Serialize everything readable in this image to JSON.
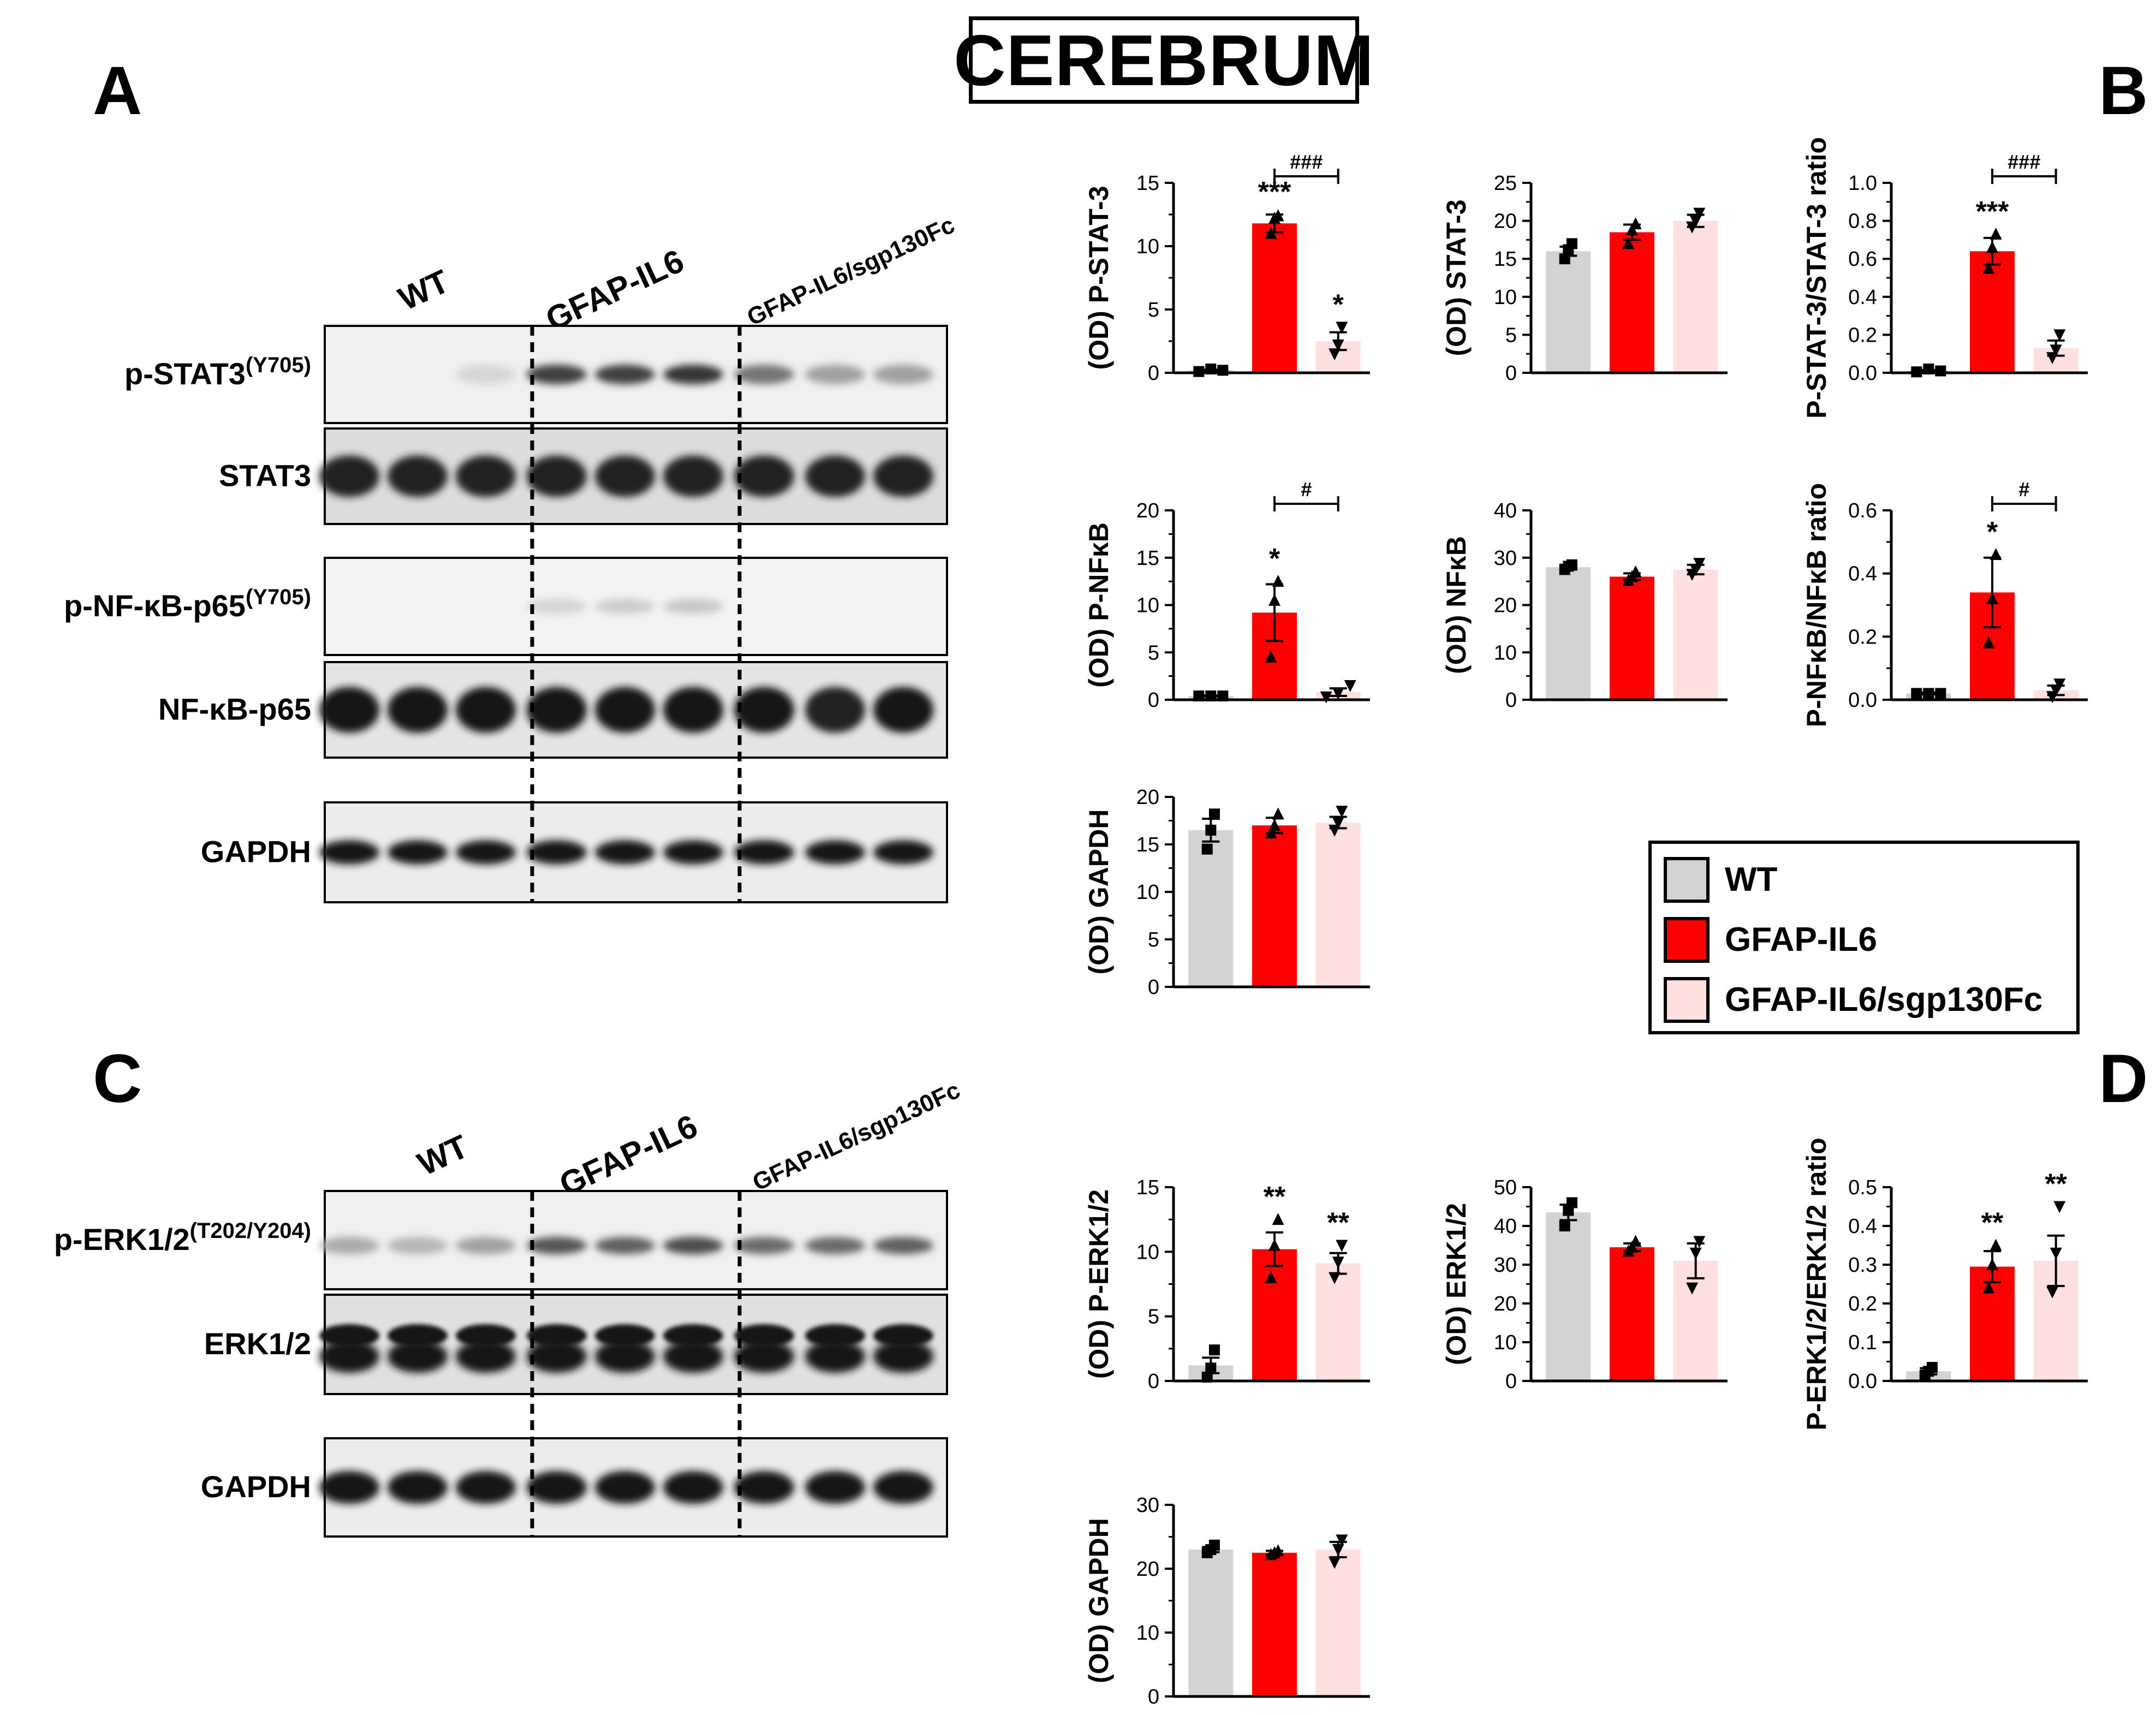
{
  "figure_title": "CEREBRUM",
  "panel_letters": {
    "A": "A",
    "B": "B",
    "C": "C",
    "D": "D"
  },
  "groups": [
    "WT",
    "GFAP-IL6",
    "GFAP-IL6/sgp130Fc"
  ],
  "colors": {
    "WT": "#d3d3d3",
    "GFAP-IL6": "#ff0000",
    "GFAP-IL6/sgp130Fc": "#ffe0e0"
  },
  "legend": [
    {
      "label": "WT",
      "color": "#d3d3d3"
    },
    {
      "label": "GFAP-IL6",
      "color": "#ff0000"
    },
    {
      "label": "GFAP-IL6/sgp130Fc",
      "color": "#ffe0e0"
    }
  ],
  "blots": {
    "A": {
      "group_headers": [
        "WT",
        "GFAP-IL6",
        "GFAP-IL6/sgp130Fc"
      ],
      "lanes": [
        {
          "label": "p-STAT3",
          "superscript": "(Y705)",
          "bands": [
            0.02,
            0.02,
            0.05,
            0.75,
            0.75,
            0.8,
            0.5,
            0.3,
            0.3
          ]
        },
        {
          "label": "STAT3",
          "superscript": "",
          "bands": [
            0.9,
            0.9,
            0.9,
            0.9,
            0.9,
            0.9,
            0.9,
            0.9,
            0.9
          ]
        },
        {
          "label": "p-NF-κB-p65",
          "superscript": "(Y705)",
          "bands": [
            0.02,
            0.02,
            0.02,
            0.06,
            0.1,
            0.12,
            0.02,
            0.02,
            0.02
          ]
        },
        {
          "label": "NF-κB-p65",
          "superscript": "",
          "bands": [
            0.95,
            0.95,
            0.95,
            0.95,
            0.95,
            0.95,
            0.95,
            0.9,
            0.95
          ]
        },
        {
          "label": "GAPDH",
          "superscript": "",
          "bands": [
            0.95,
            0.95,
            0.95,
            0.95,
            0.95,
            0.95,
            0.95,
            0.95,
            0.95
          ]
        }
      ]
    },
    "C": {
      "group_headers": [
        "WT",
        "GFAP-IL6",
        "GFAP-IL6/sgp130Fc"
      ],
      "lanes": [
        {
          "label": "p-ERK1/2",
          "superscript": "(T202/Y204)",
          "bands": [
            0.25,
            0.2,
            0.3,
            0.65,
            0.6,
            0.7,
            0.55,
            0.55,
            0.6
          ]
        },
        {
          "label": "ERK1/2",
          "superscript": "",
          "bands": [
            0.95,
            0.95,
            0.95,
            0.95,
            0.95,
            0.95,
            0.95,
            0.95,
            0.95
          ]
        },
        {
          "label": "GAPDH",
          "superscript": "",
          "bands": [
            0.95,
            0.95,
            0.95,
            0.95,
            0.95,
            0.95,
            0.95,
            0.95,
            0.95
          ]
        }
      ]
    }
  },
  "chart_data": [
    {
      "id": "pstat3",
      "type": "bar",
      "ylabel": "(OD) P-STAT-3",
      "ylim": [
        0,
        15
      ],
      "ticks": [
        0,
        5,
        10,
        15
      ],
      "tick_labels": [
        "0",
        "5",
        "10",
        "15"
      ],
      "categories": [
        "WT",
        "GFAP-IL6",
        "GFAP-IL6/sgp130Fc"
      ],
      "values": [
        0.2,
        11.8,
        2.5
      ],
      "errors": [
        0.05,
        0.7,
        0.7
      ],
      "points": [
        [
          0.1,
          0.3,
          0.2
        ],
        [
          11.0,
          12.2,
          12.4
        ],
        [
          1.5,
          2.2,
          3.6
        ]
      ],
      "marks": [
        "",
        "***",
        "*"
      ],
      "comparison": {
        "from": 1,
        "to": 2,
        "label": "###"
      }
    },
    {
      "id": "stat3",
      "type": "bar",
      "ylabel": "(OD) STAT-3",
      "ylim": [
        0,
        25
      ],
      "ticks": [
        0,
        5,
        10,
        15,
        20,
        25
      ],
      "tick_labels": [
        "0",
        "5",
        "10",
        "15",
        "20",
        "25"
      ],
      "categories": [
        "WT",
        "GFAP-IL6",
        "GFAP-IL6/sgp130Fc"
      ],
      "values": [
        16.0,
        18.5,
        20.0
      ],
      "errors": [
        0.6,
        1.0,
        0.8
      ],
      "points": [
        [
          15.0,
          16.2,
          17.0
        ],
        [
          17.0,
          18.8,
          19.6
        ],
        [
          19.2,
          20.0,
          21.0
        ]
      ],
      "marks": [
        "",
        "",
        ""
      ],
      "comparison": null
    },
    {
      "id": "pstat3ratio",
      "type": "bar",
      "ylabel": "P-STAT-3/STAT-3 ratio",
      "ylim": [
        0,
        1.0
      ],
      "ticks": [
        0,
        0.2,
        0.4,
        0.6,
        0.8,
        1.0
      ],
      "tick_labels": [
        "0.0",
        "0.2",
        "0.4",
        "0.6",
        "0.8",
        "1.0"
      ],
      "categories": [
        "WT",
        "GFAP-IL6",
        "GFAP-IL6/sgp130Fc"
      ],
      "values": [
        0.01,
        0.64,
        0.13
      ],
      "errors": [
        0.005,
        0.07,
        0.04
      ],
      "points": [
        [
          0.005,
          0.02,
          0.01
        ],
        [
          0.55,
          0.66,
          0.73
        ],
        [
          0.08,
          0.12,
          0.2
        ]
      ],
      "marks": [
        "",
        "***",
        ""
      ],
      "comparison": {
        "from": 1,
        "to": 2,
        "label": "###"
      }
    },
    {
      "id": "pnfkb",
      "type": "bar",
      "ylabel": "(OD) P-NFκB",
      "ylim": [
        0,
        20
      ],
      "ticks": [
        0,
        5,
        10,
        15,
        20
      ],
      "tick_labels": [
        "0",
        "5",
        "10",
        "15",
        "20"
      ],
      "categories": [
        "WT",
        "GFAP-IL6",
        "GFAP-IL6/sgp130Fc"
      ],
      "values": [
        0.4,
        9.2,
        0.8
      ],
      "errors": [
        0.05,
        3.0,
        0.4
      ],
      "points": [
        [
          0.4,
          0.4,
          0.4
        ],
        [
          4.5,
          10.5,
          12.5
        ],
        [
          0.3,
          0.7,
          1.5
        ]
      ],
      "marks": [
        "",
        "*",
        ""
      ],
      "comparison": {
        "from": 1,
        "to": 2,
        "label": "#"
      }
    },
    {
      "id": "nfkb",
      "type": "bar",
      "ylabel": "(OD) NFκB",
      "ylim": [
        0,
        40
      ],
      "ticks": [
        0,
        10,
        20,
        30,
        40
      ],
      "tick_labels": [
        "0",
        "10",
        "20",
        "30",
        "40"
      ],
      "categories": [
        "WT",
        "GFAP-IL6",
        "GFAP-IL6/sgp130Fc"
      ],
      "values": [
        28.0,
        26.0,
        27.5
      ],
      "errors": [
        0.5,
        0.7,
        1.0
      ],
      "points": [
        [
          27.5,
          28.2,
          28.5
        ],
        [
          25.2,
          26.0,
          27.0
        ],
        [
          26.5,
          27.5,
          28.8
        ]
      ],
      "marks": [
        "",
        "",
        ""
      ],
      "comparison": null
    },
    {
      "id": "pnfkbratio",
      "type": "bar",
      "ylabel": "P-NFκB/NFκB ratio",
      "ylim": [
        0,
        0.6
      ],
      "ticks": [
        0,
        0.2,
        0.4,
        0.6
      ],
      "tick_labels": [
        "0.0",
        "0.2",
        "0.4",
        "0.6"
      ],
      "categories": [
        "WT",
        "GFAP-IL6",
        "GFAP-IL6/sgp130Fc"
      ],
      "values": [
        0.02,
        0.34,
        0.03
      ],
      "errors": [
        0.003,
        0.11,
        0.015
      ],
      "points": [
        [
          0.02,
          0.02,
          0.02
        ],
        [
          0.18,
          0.32,
          0.46
        ],
        [
          0.01,
          0.03,
          0.05
        ]
      ],
      "marks": [
        "",
        "*",
        ""
      ],
      "comparison": {
        "from": 1,
        "to": 2,
        "label": "#"
      }
    },
    {
      "id": "gapdh1",
      "type": "bar",
      "ylabel": "(OD) GAPDH",
      "ylim": [
        0,
        20
      ],
      "ticks": [
        0,
        5,
        10,
        15,
        20
      ],
      "tick_labels": [
        "0",
        "5",
        "10",
        "15",
        "20"
      ],
      "categories": [
        "WT",
        "GFAP-IL6",
        "GFAP-IL6/sgp130Fc"
      ],
      "values": [
        16.5,
        17.0,
        17.3
      ],
      "errors": [
        1.2,
        0.8,
        0.6
      ],
      "points": [
        [
          14.5,
          16.5,
          18.2
        ],
        [
          16.2,
          17.0,
          18.2
        ],
        [
          16.5,
          17.3,
          18.5
        ]
      ],
      "marks": [
        "",
        "",
        ""
      ],
      "comparison": null
    },
    {
      "id": "perk",
      "type": "bar",
      "ylabel": "(OD) P-ERK1/2",
      "ylim": [
        0,
        15
      ],
      "ticks": [
        0,
        5,
        10,
        15
      ],
      "tick_labels": [
        "0",
        "5",
        "10",
        "15"
      ],
      "categories": [
        "WT",
        "GFAP-IL6",
        "GFAP-IL6/sgp130Fc"
      ],
      "values": [
        1.2,
        10.2,
        9.1
      ],
      "errors": [
        0.6,
        1.3,
        0.8
      ],
      "points": [
        [
          0.3,
          1.0,
          2.4
        ],
        [
          8.0,
          10.5,
          12.5
        ],
        [
          8.0,
          9.2,
          10.5
        ]
      ],
      "marks": [
        "",
        "**",
        "**"
      ],
      "comparison": null
    },
    {
      "id": "erk",
      "type": "bar",
      "ylabel": "(OD) ERK1/2",
      "ylim": [
        0,
        50
      ],
      "ticks": [
        0,
        10,
        20,
        30,
        40,
        50
      ],
      "tick_labels": [
        "0",
        "10",
        "20",
        "30",
        "40",
        "50"
      ],
      "categories": [
        "WT",
        "GFAP-IL6",
        "GFAP-IL6/sgp130Fc"
      ],
      "values": [
        43.5,
        34.5,
        31.0
      ],
      "errors": [
        2.0,
        1.0,
        4.5
      ],
      "points": [
        [
          40.0,
          44.0,
          46.0
        ],
        [
          33.5,
          34.5,
          36.0
        ],
        [
          24.0,
          33.0,
          36.0
        ]
      ],
      "marks": [
        "",
        "",
        ""
      ],
      "comparison": null
    },
    {
      "id": "perkratio",
      "type": "bar",
      "ylabel": "P-ERK1/2/ERK1/2 ratio",
      "ylim": [
        0,
        0.5
      ],
      "ticks": [
        0,
        0.1,
        0.2,
        0.3,
        0.4,
        0.5
      ],
      "tick_labels": [
        "0.0",
        "0.1",
        "0.2",
        "0.3",
        "0.4",
        "0.5"
      ],
      "categories": [
        "WT",
        "GFAP-IL6",
        "GFAP-IL6/sgp130Fc"
      ],
      "values": [
        0.025,
        0.295,
        0.31
      ],
      "errors": [
        0.008,
        0.04,
        0.065
      ],
      "points": [
        [
          0.015,
          0.025,
          0.035
        ],
        [
          0.24,
          0.3,
          0.35
        ],
        [
          0.23,
          0.33,
          0.45
        ]
      ],
      "marks": [
        "",
        "**",
        "**"
      ],
      "comparison": null
    },
    {
      "id": "gapdh2",
      "type": "bar",
      "ylabel": "(OD) GAPDH",
      "ylim": [
        0,
        30
      ],
      "ticks": [
        0,
        10,
        20,
        30
      ],
      "tick_labels": [
        "0",
        "10",
        "20",
        "30"
      ],
      "categories": [
        "WT",
        "GFAP-IL6",
        "GFAP-IL6/sgp130Fc"
      ],
      "values": [
        23.0,
        22.5,
        23.0
      ],
      "errors": [
        0.4,
        0.3,
        1.2
      ],
      "points": [
        [
          22.5,
          23.0,
          23.7
        ],
        [
          22.2,
          22.5,
          22.8
        ],
        [
          21.0,
          23.0,
          24.5
        ]
      ],
      "marks": [
        "",
        "",
        ""
      ],
      "comparison": null
    }
  ]
}
